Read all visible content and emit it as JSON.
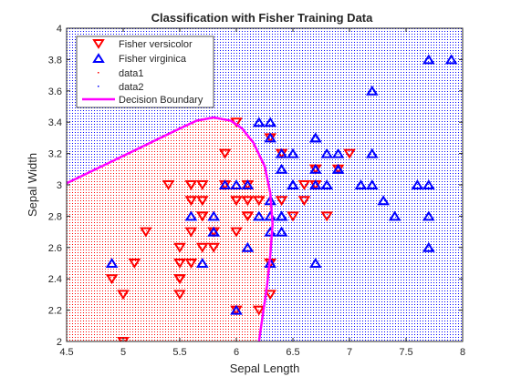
{
  "chart_data": {
    "type": "scatter",
    "title": "Classification with Fisher Training Data",
    "xlabel": "Sepal Length",
    "ylabel": "Sepal Width",
    "xlim": [
      4.5,
      8
    ],
    "ylim": [
      2,
      4
    ],
    "xticks": [
      4.5,
      5,
      5.5,
      6,
      6.5,
      7,
      7.5,
      8
    ],
    "yticks": [
      2,
      2.2,
      2.4,
      2.6,
      2.8,
      3,
      3.2,
      3.4,
      3.6,
      3.8,
      4
    ],
    "xtick_labels": [
      "4.5",
      "5",
      "5.5",
      "6",
      "6.5",
      "7",
      "7.5",
      "8"
    ],
    "ytick_labels": [
      "2",
      "2.2",
      "2.4",
      "2.6",
      "2.8",
      "3",
      "3.2",
      "3.4",
      "3.6",
      "3.8",
      "4"
    ],
    "grid": false,
    "legend_placement": "top-left",
    "colors": {
      "versicolor": "#ff0000",
      "virginica": "#0000ff",
      "region1": "#ff0000",
      "region2": "#0000ff",
      "boundary": "#ff00ff"
    },
    "series": [
      {
        "name": "Fisher versicolor",
        "marker": "triangle-down",
        "points": [
          [
            7.0,
            3.2
          ],
          [
            6.4,
            3.2
          ],
          [
            6.9,
            3.1
          ],
          [
            5.5,
            2.3
          ],
          [
            6.5,
            2.8
          ],
          [
            5.7,
            2.8
          ],
          [
            6.3,
            3.3
          ],
          [
            4.9,
            2.4
          ],
          [
            6.6,
            2.9
          ],
          [
            5.2,
            2.7
          ],
          [
            5.0,
            2.0
          ],
          [
            5.9,
            3.0
          ],
          [
            6.0,
            2.2
          ],
          [
            6.1,
            2.9
          ],
          [
            5.6,
            2.9
          ],
          [
            6.7,
            3.1
          ],
          [
            5.6,
            3.0
          ],
          [
            5.8,
            2.7
          ],
          [
            6.2,
            2.2
          ],
          [
            5.6,
            2.5
          ],
          [
            5.9,
            3.2
          ],
          [
            6.1,
            2.8
          ],
          [
            6.3,
            2.5
          ],
          [
            6.1,
            2.8
          ],
          [
            6.4,
            2.9
          ],
          [
            6.6,
            3.0
          ],
          [
            6.8,
            2.8
          ],
          [
            6.7,
            3.0
          ],
          [
            6.0,
            2.9
          ],
          [
            5.7,
            2.6
          ],
          [
            5.5,
            2.4
          ],
          [
            5.5,
            2.4
          ],
          [
            5.8,
            2.7
          ],
          [
            6.0,
            2.7
          ],
          [
            5.4,
            3.0
          ],
          [
            6.0,
            3.4
          ],
          [
            6.7,
            3.1
          ],
          [
            6.3,
            2.3
          ],
          [
            5.6,
            3.0
          ],
          [
            5.5,
            2.5
          ],
          [
            5.5,
            2.6
          ],
          [
            6.1,
            3.0
          ],
          [
            5.8,
            2.6
          ],
          [
            5.0,
            2.3
          ],
          [
            5.6,
            2.7
          ],
          [
            5.7,
            3.0
          ],
          [
            5.7,
            2.9
          ],
          [
            6.2,
            2.9
          ],
          [
            5.1,
            2.5
          ],
          [
            5.7,
            2.8
          ]
        ]
      },
      {
        "name": "Fisher virginica",
        "marker": "triangle-up",
        "points": [
          [
            6.3,
            3.3
          ],
          [
            5.8,
            2.7
          ],
          [
            7.1,
            3.0
          ],
          [
            6.3,
            2.9
          ],
          [
            6.5,
            3.0
          ],
          [
            7.6,
            3.0
          ],
          [
            4.9,
            2.5
          ],
          [
            7.3,
            2.9
          ],
          [
            6.7,
            2.5
          ],
          [
            7.2,
            3.6
          ],
          [
            6.5,
            3.2
          ],
          [
            6.4,
            2.7
          ],
          [
            6.8,
            3.0
          ],
          [
            5.7,
            2.5
          ],
          [
            5.8,
            2.8
          ],
          [
            6.4,
            3.2
          ],
          [
            6.5,
            3.0
          ],
          [
            7.7,
            3.8
          ],
          [
            7.7,
            2.6
          ],
          [
            6.0,
            2.2
          ],
          [
            6.9,
            3.2
          ],
          [
            5.6,
            2.8
          ],
          [
            7.7,
            2.8
          ],
          [
            6.3,
            2.7
          ],
          [
            6.7,
            3.3
          ],
          [
            7.2,
            3.2
          ],
          [
            6.2,
            2.8
          ],
          [
            6.1,
            3.0
          ],
          [
            6.4,
            2.8
          ],
          [
            7.2,
            3.0
          ],
          [
            7.4,
            2.8
          ],
          [
            7.9,
            3.8
          ],
          [
            6.4,
            2.8
          ],
          [
            6.3,
            2.8
          ],
          [
            6.1,
            2.6
          ],
          [
            7.7,
            3.0
          ],
          [
            6.3,
            3.4
          ],
          [
            6.4,
            3.1
          ],
          [
            6.0,
            3.0
          ],
          [
            6.9,
            3.1
          ],
          [
            6.7,
            3.1
          ],
          [
            6.9,
            3.1
          ],
          [
            5.8,
            2.7
          ],
          [
            6.8,
            3.2
          ],
          [
            6.7,
            3.3
          ],
          [
            6.7,
            3.0
          ],
          [
            6.3,
            2.5
          ],
          [
            6.5,
            3.0
          ],
          [
            6.2,
            3.4
          ],
          [
            5.9,
            3.0
          ]
        ]
      },
      {
        "name": "data1",
        "kind": "region-dots"
      },
      {
        "name": "data2",
        "kind": "region-dots"
      },
      {
        "name": "Decision Boundary",
        "kind": "line",
        "points": [
          [
            4.5,
            3.01
          ],
          [
            4.7,
            3.08
          ],
          [
            4.9,
            3.15
          ],
          [
            5.1,
            3.22
          ],
          [
            5.3,
            3.29
          ],
          [
            5.5,
            3.36
          ],
          [
            5.65,
            3.41
          ],
          [
            5.8,
            3.43
          ],
          [
            5.95,
            3.41
          ],
          [
            6.05,
            3.36
          ],
          [
            6.15,
            3.27
          ],
          [
            6.25,
            3.12
          ],
          [
            6.3,
            2.95
          ],
          [
            6.32,
            2.75
          ],
          [
            6.3,
            2.55
          ],
          [
            6.27,
            2.35
          ],
          [
            6.23,
            2.15
          ],
          [
            6.2,
            2.0
          ]
        ]
      }
    ]
  }
}
